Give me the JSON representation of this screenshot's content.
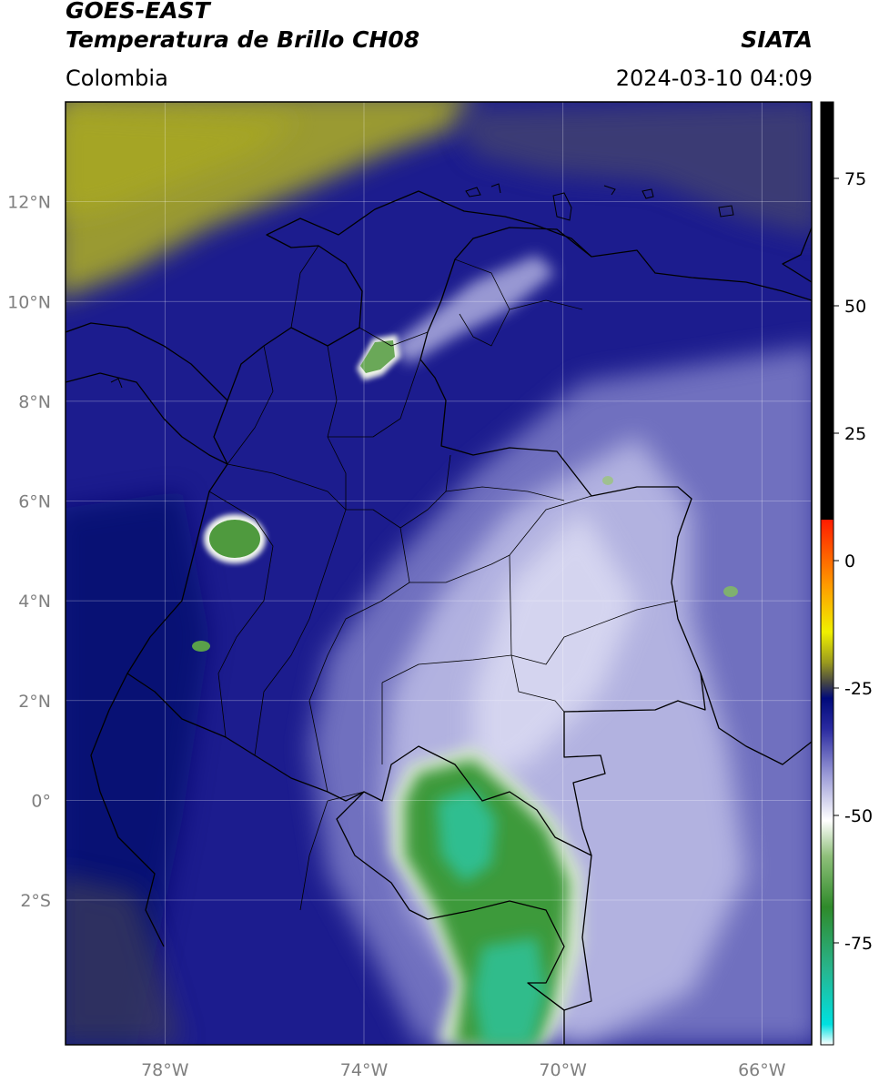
{
  "header": {
    "satellite": "GOES-EAST",
    "product": "Temperatura de Brillo CH08",
    "region": "Colombia",
    "organization": "SIATA",
    "timestamp": "2024-03-10 04:09"
  },
  "axes": {
    "lon_range": [
      -80,
      -65
    ],
    "lat_range": [
      -4.9,
      14
    ],
    "lon_ticks": [
      {
        "v": -78,
        "label": "78°W"
      },
      {
        "v": -74,
        "label": "74°W"
      },
      {
        "v": -70,
        "label": "70°W"
      },
      {
        "v": -66,
        "label": "66°W"
      }
    ],
    "lat_ticks": [
      {
        "v": 12,
        "label": "12°N"
      },
      {
        "v": 10,
        "label": "10°N"
      },
      {
        "v": 8,
        "label": "8°N"
      },
      {
        "v": 6,
        "label": "6°N"
      },
      {
        "v": 4,
        "label": "4°N"
      },
      {
        "v": 2,
        "label": "2°N"
      },
      {
        "v": 0,
        "label": "0°"
      },
      {
        "v": -2,
        "label": "2°S"
      }
    ],
    "grid": true
  },
  "colorbar": {
    "range": [
      -95,
      90
    ],
    "ticks": [
      {
        "v": 75,
        "label": "75"
      },
      {
        "v": 50,
        "label": "50"
      },
      {
        "v": 25,
        "label": "25"
      },
      {
        "v": 0,
        "label": "0"
      },
      {
        "v": -25,
        "label": "-25"
      },
      {
        "v": -50,
        "label": "-50"
      },
      {
        "v": -75,
        "label": "-75"
      }
    ],
    "stops": [
      {
        "v": -95,
        "color": "#ffffff"
      },
      {
        "v": -91,
        "color": "#00e0e0"
      },
      {
        "v": -80,
        "color": "#28b48c"
      },
      {
        "v": -68,
        "color": "#2f8a2a"
      },
      {
        "v": -58,
        "color": "#8fc07a"
      },
      {
        "v": -51,
        "color": "#ffffff"
      },
      {
        "v": -42,
        "color": "#9a9ad6"
      },
      {
        "v": -33,
        "color": "#2a2aa0"
      },
      {
        "v": -27,
        "color": "#000a7a"
      },
      {
        "v": -24,
        "color": "#454545"
      },
      {
        "v": -20,
        "color": "#9a9a1e"
      },
      {
        "v": -14,
        "color": "#f0f000"
      },
      {
        "v": -5,
        "color": "#ff9c00"
      },
      {
        "v": 8,
        "color": "#ff1c00"
      },
      {
        "v": 8.01,
        "color": "#000000"
      },
      {
        "v": 90,
        "color": "#000000"
      }
    ]
  },
  "map_layers": {
    "background_color": "#1c1c8e",
    "features": [
      {
        "name": "sea-cold-cloud-band",
        "color": "#8f8f3a"
      },
      {
        "name": "amazon-convective-cluster",
        "color": "#3aa052"
      },
      {
        "name": "pacific-cell",
        "color": "#4f9a3e"
      },
      {
        "name": "caribbean-cell",
        "color": "#6aa858"
      }
    ]
  }
}
